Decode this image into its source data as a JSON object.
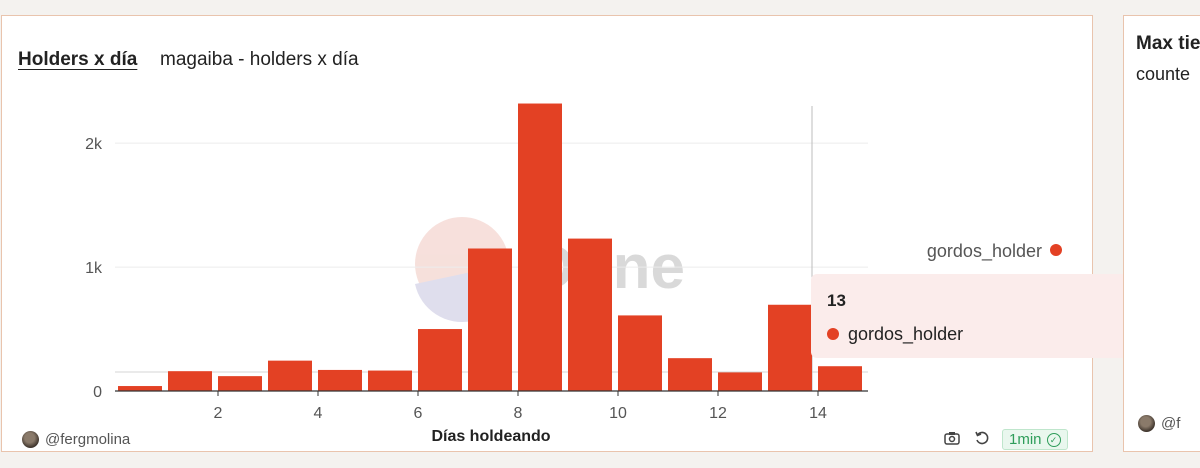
{
  "card1": {
    "title": "Holders x día",
    "subtitle": "magaiba - holders x día",
    "author": "@fergmolina",
    "freshness": "1min"
  },
  "card2": {
    "title": "Max tie",
    "subtitle": "counte",
    "author": "@f"
  },
  "tooltip": {
    "x": "13",
    "series": "gordos_holder",
    "value": "696"
  },
  "watermark": "Dune",
  "chart_data": {
    "type": "bar",
    "xlabel": "Días holdeando",
    "ylabel": "",
    "legend": "right",
    "x": [
      0,
      1,
      2,
      3,
      4,
      5,
      6,
      7,
      8,
      9,
      10,
      11,
      12,
      13,
      14
    ],
    "series": [
      {
        "name": "gordos_holder",
        "color": "#e34124",
        "values": [
          40,
          160,
          120,
          245,
          170,
          165,
          500,
          1150,
          2320,
          1230,
          610,
          265,
          150,
          696,
          200
        ]
      }
    ],
    "xticks": [
      2,
      4,
      6,
      8,
      10,
      12,
      14
    ],
    "yticks": [
      {
        "v": 0,
        "label": "0"
      },
      {
        "v": 1000,
        "label": "1k"
      },
      {
        "v": 2000,
        "label": "2k"
      }
    ],
    "ylim": [
      0,
      2300
    ],
    "grid": true,
    "hover_x": 13
  }
}
